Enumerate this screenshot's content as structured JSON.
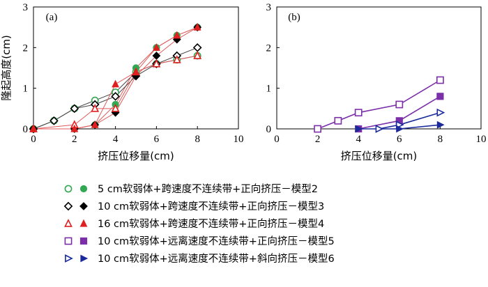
{
  "chart_data": [
    {
      "panel": "(a)",
      "type": "line",
      "xlabel": "挤压位移量(cm)",
      "ylabel": "隆起高度(cm)",
      "xlim": [
        0,
        10
      ],
      "ylim": [
        0,
        3
      ],
      "xticks": [
        0,
        2,
        4,
        6,
        8,
        10
      ],
      "yticks": [
        0,
        1,
        2,
        3
      ],
      "series": [
        {
          "name": "5 cm软弱体+跨速度不连续带+正向挤压-模型2 (open)",
          "model": "2",
          "marker": "circle",
          "fill": false,
          "color": "#33a853",
          "line": "#444444",
          "x": [
            0,
            1,
            2,
            3,
            4,
            5,
            6,
            7,
            8
          ],
          "y": [
            0,
            0.2,
            0.5,
            0.7,
            0.9,
            1.4,
            1.6,
            1.7,
            1.8
          ]
        },
        {
          "name": "5 cm软弱体+跨速度不连续带+正向挤压-模型2 (solid)",
          "model": "2",
          "marker": "circle",
          "fill": true,
          "color": "#33a853",
          "line": "#e05a5a",
          "x": [
            0,
            2,
            3,
            4,
            5,
            6,
            7,
            8
          ],
          "y": [
            0,
            0,
            0.1,
            0.6,
            1.5,
            2.0,
            2.3,
            2.5
          ]
        },
        {
          "name": "10 cm软弱体+跨速度不连续带+正向挤压-模型3 (open)",
          "model": "3",
          "marker": "diamond",
          "fill": false,
          "color": "#000000",
          "line": "#444444",
          "x": [
            0,
            1,
            2,
            3,
            4,
            5,
            6,
            7,
            8
          ],
          "y": [
            0,
            0.2,
            0.5,
            0.6,
            0.8,
            1.3,
            1.6,
            1.8,
            2.0
          ]
        },
        {
          "name": "10 cm软弱体+跨速度不连续带+正向挤压-模型3 (solid)",
          "model": "3",
          "marker": "diamond",
          "fill": true,
          "color": "#000000",
          "line": "#e05a5a",
          "x": [
            0,
            2,
            3,
            4,
            5,
            6,
            7,
            8
          ],
          "y": [
            0,
            0,
            0.1,
            0.4,
            1.3,
            1.8,
            2.2,
            2.5
          ]
        },
        {
          "name": "16 cm软弱体+跨速度不连续带+正向挤压-模型4 (open)",
          "model": "4",
          "marker": "triangle-up",
          "fill": false,
          "color": "#e02020",
          "line": "#e05a5a",
          "x": [
            0,
            2,
            3,
            4,
            5,
            6,
            7,
            8
          ],
          "y": [
            0,
            0.1,
            0.5,
            0.5,
            1.4,
            1.6,
            1.7,
            1.8
          ]
        },
        {
          "name": "16 cm软弱体+跨速度不连续带+正向挤压-模型4 (solid)",
          "model": "4",
          "marker": "triangle-up",
          "fill": true,
          "color": "#e02020",
          "line": "#e05a5a",
          "x": [
            0,
            2,
            3,
            4,
            5,
            6,
            7,
            8
          ],
          "y": [
            0,
            0,
            0.1,
            1.1,
            1.4,
            2.0,
            2.3,
            2.5
          ]
        }
      ]
    },
    {
      "panel": "(b)",
      "type": "line",
      "xlabel": "挤压位移量(cm)",
      "ylabel": "",
      "xlim": [
        0,
        10
      ],
      "ylim": [
        0,
        3
      ],
      "xticks": [
        0,
        2,
        4,
        6,
        8,
        10
      ],
      "yticks": [
        0,
        1,
        2,
        3
      ],
      "series": [
        {
          "name": "10 cm软弱体+远离速度不连续带+正向挤压-模型5 (open)",
          "model": "5",
          "marker": "square",
          "fill": false,
          "color": "#7b2fa8",
          "line": "#7b2fa8",
          "x": [
            2,
            3,
            4,
            6,
            8
          ],
          "y": [
            0,
            0.2,
            0.4,
            0.6,
            1.2
          ]
        },
        {
          "name": "10 cm软弱体+远离速度不连续带+正向挤压-模型5 (solid)",
          "model": "5",
          "marker": "square",
          "fill": true,
          "color": "#7b2fa8",
          "line": "#7b2fa8",
          "x": [
            4,
            6,
            8
          ],
          "y": [
            0,
            0.2,
            0.8
          ]
        },
        {
          "name": "10 cm软弱体+远离速度不连续带+斜向挤压-模型6 (open)",
          "model": "6",
          "marker": "triangle-right",
          "fill": false,
          "color": "#1a2a9a",
          "line": "#1a2a9a",
          "x": [
            5,
            6,
            8
          ],
          "y": [
            0,
            0.1,
            0.4
          ]
        },
        {
          "name": "10 cm软弱体+远离速度不连续带+斜向挤压-模型6 (solid)",
          "model": "6",
          "marker": "triangle-right",
          "fill": true,
          "color": "#1a2a9a",
          "line": "#1a2a9a",
          "x": [
            4,
            6,
            8
          ],
          "y": [
            0,
            0,
            0.1
          ]
        }
      ]
    }
  ],
  "legend": [
    {
      "text": "5 cm软弱体+跨速度不连续带+正向挤压－模型2",
      "marker": "circle",
      "color": "#33a853"
    },
    {
      "text": "10 cm软弱体+跨速度不连续带+正向挤压－模型3",
      "marker": "diamond",
      "color": "#000000"
    },
    {
      "text": "16 cm软弱体+跨速度不连续带+正向挤压－模型4",
      "marker": "triangle-up",
      "color": "#e02020"
    },
    {
      "text": "10 cm软弱体+远离速度不连续带+正向挤压－模型5",
      "marker": "square",
      "color": "#7b2fa8"
    },
    {
      "text": "10 cm软弱体+远离速度不连续带+斜向挤压－模型6",
      "marker": "triangle-right",
      "color": "#1a2a9a"
    }
  ]
}
